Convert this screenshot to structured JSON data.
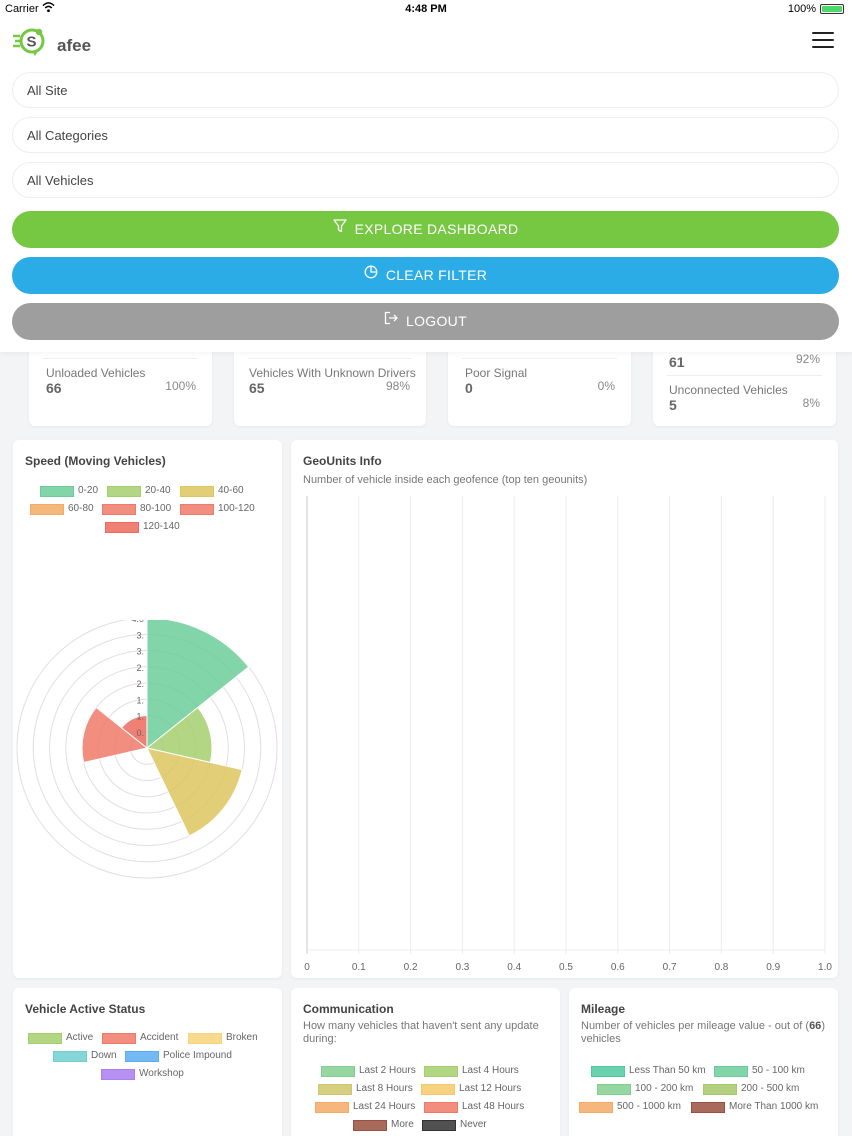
{
  "status_bar": {
    "carrier": "Carrier",
    "time": "4:48 PM",
    "battery": "100%"
  },
  "header": {
    "logo_text": "afee",
    "logo_letter": "S"
  },
  "filters": {
    "site": "All Site",
    "categories": "All Categories",
    "vehicles": "All Vehicles"
  },
  "buttons": {
    "explore": "EXPLORE DASHBOARD",
    "clear": "CLEAR FILTER",
    "logout": "LOGOUT"
  },
  "colors": {
    "green": "#76c843",
    "blue": "#2cace6",
    "gray": "#9e9e9e"
  },
  "stats": {
    "unloaded": {
      "label": "Unloaded Vehicles",
      "value": "66",
      "pct": "100%"
    },
    "unknown_drivers": {
      "label": "Vehicles With Unknown Drivers",
      "value": "65",
      "pct": "98%"
    },
    "poor_signal": {
      "label": "Poor Signal",
      "value": "0",
      "pct": "0%"
    },
    "top_partial": {
      "value": "61",
      "pct": "92%"
    },
    "unconnected": {
      "label": "Unconnected Vehicles",
      "value": "5",
      "pct": "8%"
    }
  },
  "speed_card": {
    "title": "Speed (Moving Vehicles)",
    "legend": [
      {
        "label": "0-20",
        "color": "#6ccc9a"
      },
      {
        "label": "20-40",
        "color": "#a5cf6e"
      },
      {
        "label": "40-60",
        "color": "#dcc65e"
      },
      {
        "label": "60-80",
        "color": "#f3aa64"
      },
      {
        "label": "80-100",
        "color": "#ee7a68"
      },
      {
        "label": "100-120",
        "color": "#ee7a68"
      },
      {
        "label": "120-140",
        "color": "#ee6a5c"
      }
    ]
  },
  "geo_card": {
    "title": "GeoUnits Info",
    "subtitle": "Number of vehicle inside each geofence (top ten geounits)",
    "ticks": [
      "0",
      "0.1",
      "0.2",
      "0.3",
      "0.4",
      "0.5",
      "0.6",
      "0.7",
      "0.8",
      "0.9",
      "1.0"
    ]
  },
  "active_status_card": {
    "title": "Vehicle Active Status",
    "legend": [
      {
        "label": "Active",
        "color": "#a5cf6e"
      },
      {
        "label": "Accident",
        "color": "#ee7a68"
      },
      {
        "label": "Broken",
        "color": "#f7d37a"
      },
      {
        "label": "Down",
        "color": "#6fd0cf"
      },
      {
        "label": "Police Impound",
        "color": "#5aaef0"
      },
      {
        "label": "Workshop",
        "color": "#a97ef0"
      }
    ]
  },
  "communication_card": {
    "title": "Communication",
    "subtitle": "How many vehicles that haven't sent any update during:",
    "legend": [
      {
        "label": "Last 2 Hours",
        "color": "#82cf90"
      },
      {
        "label": "Last 4 Hours",
        "color": "#a5cf6e"
      },
      {
        "label": "Last 8 Hours",
        "color": "#cfc56a"
      },
      {
        "label": "Last 12 Hours",
        "color": "#f3c96a"
      },
      {
        "label": "Last 24 Hours",
        "color": "#f3aa64"
      },
      {
        "label": "Last 48 Hours",
        "color": "#ee7a68"
      },
      {
        "label": "More",
        "color": "#9a5040"
      },
      {
        "label": "Never",
        "color": "#333333"
      }
    ]
  },
  "mileage_card": {
    "title": "Mileage",
    "subtitle_pre": "Number of vehicles per mileage value - out of (",
    "subtitle_bold": "66",
    "subtitle_post": ")",
    "subtitle_line2": "vehicles",
    "legend": [
      {
        "label": "Less Than 50 km",
        "color": "#4fc9a0"
      },
      {
        "label": "50 - 100 km",
        "color": "#6ccc9a"
      },
      {
        "label": "100 - 200 km",
        "color": "#82cf90"
      },
      {
        "label": "200 - 500 km",
        "color": "#a5c86a"
      },
      {
        "label": "500 - 1000 km",
        "color": "#f3aa64"
      },
      {
        "label": "More Than 1000 km",
        "color": "#9a5040"
      }
    ]
  },
  "chart_data": [
    {
      "type": "polarArea",
      "title": "Speed (Moving Vehicles)",
      "categories": [
        "0-20",
        "20-40",
        "40-60",
        "60-80",
        "80-100",
        "100-120",
        "120-140"
      ],
      "values": [
        4,
        2,
        3,
        0,
        0,
        2,
        1
      ],
      "r_ticks": [
        "4.0",
        "3.",
        "3.",
        "2.",
        "2.",
        "1.",
        "1.",
        "0."
      ],
      "rlim": [
        0,
        4
      ]
    },
    {
      "type": "bar",
      "orientation": "horizontal",
      "title": "GeoUnits Info",
      "categories": [],
      "values": [],
      "xlim": [
        0,
        1.0
      ],
      "x_ticks": [
        "0",
        "0.1",
        "0.2",
        "0.3",
        "0.4",
        "0.5",
        "0.6",
        "0.7",
        "0.8",
        "0.9",
        "1.0"
      ]
    }
  ]
}
